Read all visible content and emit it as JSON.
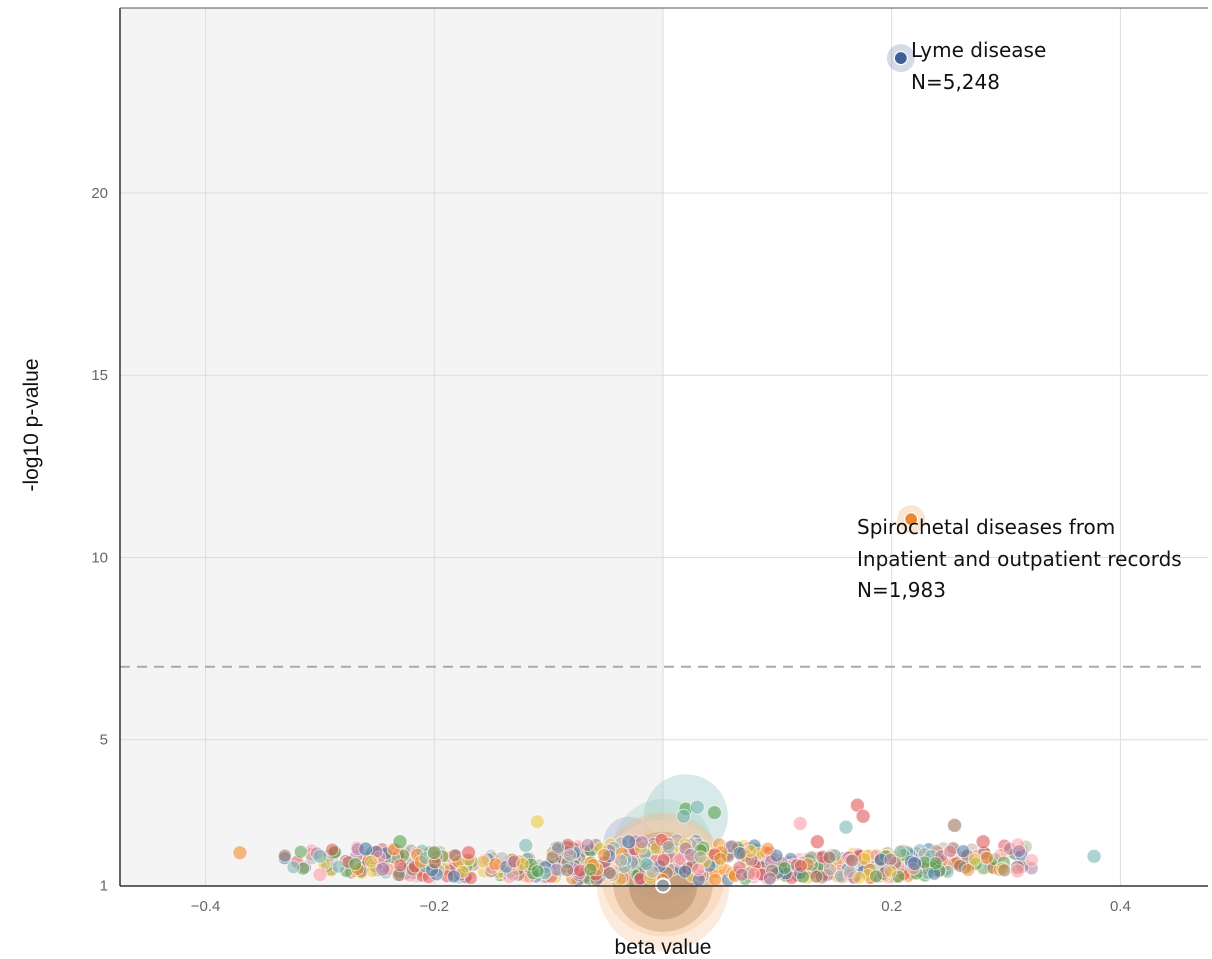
{
  "chart_data": {
    "type": "scatter",
    "title": "",
    "xlabel": "beta value",
    "ylabel": "-log10 p-value",
    "xlim": [
      -0.475,
      0.475
    ],
    "ylim": [
      1,
      24.2
    ],
    "x_ticks": [
      -0.4,
      -0.2,
      0.2,
      0.4
    ],
    "x_tick_labels": [
      "−0.4",
      "−0.2",
      "0.2",
      "0.4"
    ],
    "y_ticks": [
      1,
      5,
      10,
      15,
      20
    ],
    "y_tick_labels": [
      "1",
      "5",
      "10",
      "15",
      "20"
    ],
    "grid": true,
    "shaded_region": {
      "x": [
        -0.475,
        0
      ],
      "color": "#f4f4f4"
    },
    "threshold": {
      "y": 7,
      "style": "dashed",
      "color": "#aaaaaa"
    },
    "palette": [
      "#4e79a7",
      "#f28e2b",
      "#e15759",
      "#76b7b2",
      "#59a14f",
      "#edc948",
      "#b07aa1",
      "#ff9da7",
      "#9c755f",
      "#bab0ac"
    ],
    "points": [
      {
        "x": 0.208,
        "y": 23.7,
        "color": "#3d5f96",
        "label": "Lyme disease",
        "n": "N=5,248"
      },
      {
        "x": 0.217,
        "y": 11.05,
        "color": "#e98933",
        "label": "Spirochetal diseases from Inpatient and outpatient records",
        "n": "N=1,983"
      },
      {
        "x": 0.0,
        "y": 1.0,
        "color": "#9aa0a6"
      },
      {
        "x": -0.37,
        "y": 1.9,
        "color": "#f28e2b"
      },
      {
        "x": 0.377,
        "y": 1.8,
        "color": "#76b7b2"
      },
      {
        "x": 0.17,
        "y": 3.2,
        "color": "#e15759"
      },
      {
        "x": 0.175,
        "y": 2.9,
        "color": "#e15759"
      },
      {
        "x": 0.02,
        "y": 3.1,
        "color": "#59a14f"
      },
      {
        "x": 0.03,
        "y": 3.15,
        "color": "#76b7b2"
      },
      {
        "x": 0.045,
        "y": 3.0,
        "color": "#59a14f"
      },
      {
        "x": 0.018,
        "y": 2.9,
        "color": "#76b7b2"
      },
      {
        "x": -0.11,
        "y": 2.75,
        "color": "#edc948"
      },
      {
        "x": 0.255,
        "y": 2.65,
        "color": "#9c755f"
      },
      {
        "x": 0.22,
        "y": 1.6,
        "color": "#4e79a7"
      },
      {
        "x": 0.28,
        "y": 2.2,
        "color": "#e15759"
      },
      {
        "x": 0.31,
        "y": 1.5,
        "color": "#9c755f"
      },
      {
        "x": 0.31,
        "y": 1.4,
        "color": "#ff9da7"
      },
      {
        "x": -0.3,
        "y": 1.8,
        "color": "#76b7b2"
      },
      {
        "x": -0.3,
        "y": 1.3,
        "color": "#ff9da7"
      },
      {
        "x": -0.26,
        "y": 2.0,
        "color": "#4e79a7"
      },
      {
        "x": -0.245,
        "y": 1.45,
        "color": "#b07aa1"
      },
      {
        "x": -0.23,
        "y": 2.2,
        "color": "#59a14f"
      },
      {
        "x": -0.2,
        "y": 1.9,
        "color": "#59a14f"
      },
      {
        "x": -0.17,
        "y": 1.9,
        "color": "#e15759"
      },
      {
        "x": -0.12,
        "y": 2.1,
        "color": "#76b7b2"
      },
      {
        "x": -0.03,
        "y": 2.2,
        "color": "#4e79a7"
      },
      {
        "x": 0.12,
        "y": 2.7,
        "color": "#ff9da7"
      },
      {
        "x": 0.135,
        "y": 2.2,
        "color": "#e15759"
      },
      {
        "x": 0.16,
        "y": 2.6,
        "color": "#76b7b2"
      }
    ]
  }
}
